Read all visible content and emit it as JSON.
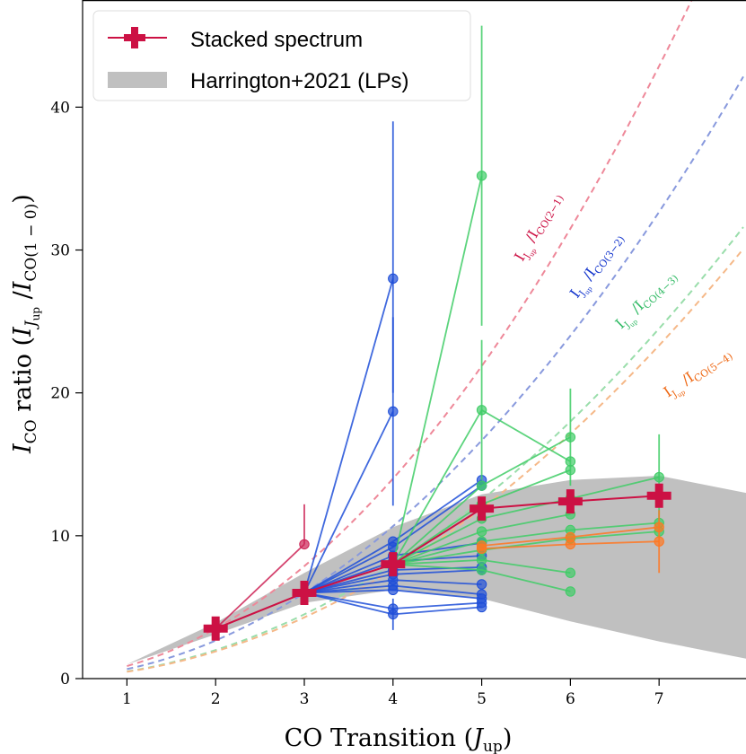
{
  "chart_data": {
    "type": "line",
    "xlabel": "CO Transition (J_up)",
    "xlabel_main": "CO Transition (",
    "xlabel_var": "J",
    "xlabel_sub": "up",
    "xlabel_close": ")",
    "ylabel": "I_CO ratio (I_Jup / I_CO(1-0))",
    "xlim": [
      0.5,
      7.98
    ],
    "ylim": [
      0,
      47.5
    ],
    "xticks": [
      1,
      2,
      3,
      4,
      5,
      6,
      7
    ],
    "yticks": [
      0,
      10,
      20,
      30,
      40
    ],
    "legend": {
      "position": "top-left",
      "entries": [
        {
          "label": "Stacked spectrum",
          "color": "#cc1144"
        },
        {
          "label": "Harrington+2021 (LPs)",
          "color": "#c0c0c0"
        }
      ]
    },
    "band": {
      "name": "Harrington+2021 (LPs)",
      "color": "#c0c0c0",
      "x": [
        1,
        2,
        3,
        4,
        5,
        6,
        7,
        7.98
      ],
      "upper": [
        1.0,
        3.9,
        7.4,
        10.6,
        12.9,
        13.9,
        14.2,
        13.0
      ],
      "lower": [
        1.0,
        3.1,
        5.3,
        6.2,
        5.6,
        4.0,
        2.6,
        1.4
      ]
    },
    "stacked": {
      "name": "Stacked spectrum",
      "color": "#cc1144",
      "x": [
        2,
        3,
        4,
        5,
        6,
        7
      ],
      "y": [
        3.5,
        6.0,
        8.0,
        11.9,
        12.4,
        12.8
      ]
    },
    "curves": [
      {
        "name": "I_Jup/I_CO(2-1)",
        "color": "#ee8899",
        "anchor_J": 2,
        "anchor_y": 3.5
      },
      {
        "name": "I_Jup/I_CO(3-2)",
        "color": "#8899dd",
        "anchor_J": 3,
        "anchor_y": 6.0
      },
      {
        "name": "I_Jup/I_CO(4-3)",
        "color": "#99ddaa",
        "anchor_J": 4,
        "anchor_y": 8.0
      },
      {
        "name": "I_Jup/I_CO(5-4)",
        "color": "#f5b888",
        "anchor_J": 5,
        "anchor_y": 11.9
      }
    ],
    "annotations": [
      {
        "series": "2-1",
        "text": "CO(2−1)",
        "color": "#cc1144"
      },
      {
        "series": "3-2",
        "text": "CO(3−2)",
        "color": "#1133cc"
      },
      {
        "series": "4-3",
        "text": "CO(4−3)",
        "color": "#33bb66"
      },
      {
        "series": "5-4",
        "text": "CO(5−4)",
        "color": "#ee6611"
      }
    ],
    "sources": [
      {
        "group": "red",
        "color": "#cc2255",
        "x": [
          2,
          3
        ],
        "y": [
          3.5,
          9.4
        ],
        "err_up": [
          0,
          2.8
        ],
        "err_dn": [
          0,
          0
        ]
      },
      {
        "group": "blue",
        "color": "#1f4fd8",
        "x": [
          3,
          4
        ],
        "y": [
          6.0,
          28.0
        ],
        "err_up": [
          0,
          11.0
        ],
        "err_dn": [
          0,
          8.0
        ]
      },
      {
        "group": "blue",
        "color": "#1f4fd8",
        "x": [
          3,
          4
        ],
        "y": [
          6.0,
          18.7
        ],
        "err_up": [
          0,
          6.6
        ],
        "err_dn": [
          0,
          6.6
        ]
      },
      {
        "group": "blue",
        "color": "#1f4fd8",
        "x": [
          3,
          4,
          5
        ],
        "y": [
          6.0,
          9.6,
          13.9
        ],
        "err_up": [
          0,
          0,
          0
        ],
        "err_dn": [
          0,
          0,
          0
        ]
      },
      {
        "group": "blue",
        "color": "#1f4fd8",
        "x": [
          3,
          4,
          5
        ],
        "y": [
          6.0,
          9.2,
          13.5
        ],
        "err_up": [
          0,
          0,
          0
        ],
        "err_dn": [
          0,
          0,
          0
        ]
      },
      {
        "group": "blue",
        "color": "#1f4fd8",
        "x": [
          3,
          4,
          5
        ],
        "y": [
          6.0,
          8.6,
          9.5
        ],
        "err_up": [
          0,
          0,
          0
        ],
        "err_dn": [
          0,
          0,
          0
        ]
      },
      {
        "group": "blue",
        "color": "#1f4fd8",
        "x": [
          3,
          4,
          5
        ],
        "y": [
          6.0,
          8.2,
          8.6
        ],
        "err_up": [
          0,
          0,
          0
        ],
        "err_dn": [
          0,
          0,
          0
        ]
      },
      {
        "group": "blue",
        "color": "#1f4fd8",
        "x": [
          3,
          4,
          5
        ],
        "y": [
          6.0,
          7.6,
          7.8
        ],
        "err_up": [
          0,
          0,
          0
        ],
        "err_dn": [
          0,
          0,
          0
        ]
      },
      {
        "group": "blue",
        "color": "#1f4fd8",
        "x": [
          3,
          4,
          5
        ],
        "y": [
          6.0,
          7.3,
          7.6
        ],
        "err_up": [
          0,
          0,
          0
        ],
        "err_dn": [
          0,
          0,
          0
        ]
      },
      {
        "group": "blue",
        "color": "#1f4fd8",
        "x": [
          3,
          4,
          5
        ],
        "y": [
          6.0,
          6.9,
          6.6
        ],
        "err_up": [
          0,
          0,
          0
        ],
        "err_dn": [
          0,
          0,
          0
        ]
      },
      {
        "group": "blue",
        "color": "#1f4fd8",
        "x": [
          3,
          4,
          5
        ],
        "y": [
          6.0,
          6.5,
          5.9
        ],
        "err_up": [
          0,
          0,
          0
        ],
        "err_dn": [
          0,
          0,
          0
        ]
      },
      {
        "group": "blue",
        "color": "#1f4fd8",
        "x": [
          3,
          4,
          5
        ],
        "y": [
          6.0,
          6.2,
          5.6
        ],
        "err_up": [
          0,
          0,
          0
        ],
        "err_dn": [
          0,
          0,
          0
        ]
      },
      {
        "group": "blue",
        "color": "#1f4fd8",
        "x": [
          3,
          4,
          5
        ],
        "y": [
          6.0,
          4.9,
          5.3
        ],
        "err_up": [
          0,
          0,
          0
        ],
        "err_dn": [
          0,
          0,
          0
        ]
      },
      {
        "group": "blue",
        "color": "#1f4fd8",
        "x": [
          3,
          4,
          5
        ],
        "y": [
          6.0,
          4.5,
          5.0
        ],
        "err_up": [
          0,
          1.1,
          0
        ],
        "err_dn": [
          0,
          1.1,
          0
        ]
      },
      {
        "group": "green",
        "color": "#3fcc66",
        "x": [
          4,
          5
        ],
        "y": [
          8.0,
          35.2
        ],
        "err_up": [
          0,
          10.5
        ],
        "err_dn": [
          0,
          10.5
        ]
      },
      {
        "group": "green",
        "color": "#3fcc66",
        "x": [
          4,
          5,
          6
        ],
        "y": [
          8.0,
          18.8,
          15.2
        ],
        "err_up": [
          0,
          4.9,
          0
        ],
        "err_dn": [
          0,
          4.9,
          0
        ]
      },
      {
        "group": "green",
        "color": "#3fcc66",
        "x": [
          4,
          5,
          6
        ],
        "y": [
          8.0,
          13.5,
          16.9
        ],
        "err_up": [
          0,
          0,
          3.4
        ],
        "err_dn": [
          0,
          0,
          3.4
        ]
      },
      {
        "group": "green",
        "color": "#3fcc66",
        "x": [
          4,
          5,
          6
        ],
        "y": [
          8.0,
          12.2,
          14.6
        ],
        "err_up": [
          0,
          0,
          0
        ],
        "err_dn": [
          0,
          0,
          0
        ]
      },
      {
        "group": "green",
        "color": "#3fcc66",
        "x": [
          4,
          5,
          6,
          7
        ],
        "y": [
          8.0,
          11.2,
          12.6,
          14.1
        ],
        "err_up": [
          0,
          0,
          0,
          3.0
        ],
        "err_dn": [
          0,
          0,
          0,
          3.0
        ]
      },
      {
        "group": "green",
        "color": "#3fcc66",
        "x": [
          4,
          5,
          6
        ],
        "y": [
          8.0,
          10.3,
          11.5
        ],
        "err_up": [
          0,
          0,
          0
        ],
        "err_dn": [
          0,
          0,
          0
        ]
      },
      {
        "group": "green",
        "color": "#3fcc66",
        "x": [
          4,
          5,
          6,
          7
        ],
        "y": [
          8.0,
          9.6,
          10.4,
          10.9
        ],
        "err_up": [
          0,
          0,
          0,
          0
        ],
        "err_dn": [
          0,
          0,
          0,
          0
        ]
      },
      {
        "group": "green",
        "color": "#3fcc66",
        "x": [
          4,
          5,
          6,
          7
        ],
        "y": [
          8.0,
          9.0,
          9.8,
          10.3
        ],
        "err_up": [
          0,
          0,
          0,
          0
        ],
        "err_dn": [
          0,
          0,
          0,
          0
        ]
      },
      {
        "group": "green",
        "color": "#3fcc66",
        "x": [
          4,
          5,
          6
        ],
        "y": [
          8.0,
          8.3,
          7.4
        ],
        "err_up": [
          0,
          0,
          0
        ],
        "err_dn": [
          0,
          0,
          0
        ]
      },
      {
        "group": "green",
        "color": "#3fcc66",
        "x": [
          4,
          5,
          6
        ],
        "y": [
          8.0,
          7.6,
          6.1
        ],
        "err_up": [
          0,
          0,
          0
        ],
        "err_dn": [
          0,
          0,
          0
        ]
      },
      {
        "group": "orange",
        "color": "#ff7722",
        "x": [
          5,
          6,
          7
        ],
        "y": [
          9.3,
          9.9,
          10.6
        ],
        "err_up": [
          0,
          0,
          0
        ],
        "err_dn": [
          0,
          0,
          0
        ]
      },
      {
        "group": "orange",
        "color": "#ff7722",
        "x": [
          5,
          6,
          7
        ],
        "y": [
          9.1,
          9.4,
          9.6
        ],
        "err_up": [
          0,
          0,
          2.2
        ],
        "err_dn": [
          0,
          0,
          2.2
        ]
      }
    ]
  }
}
